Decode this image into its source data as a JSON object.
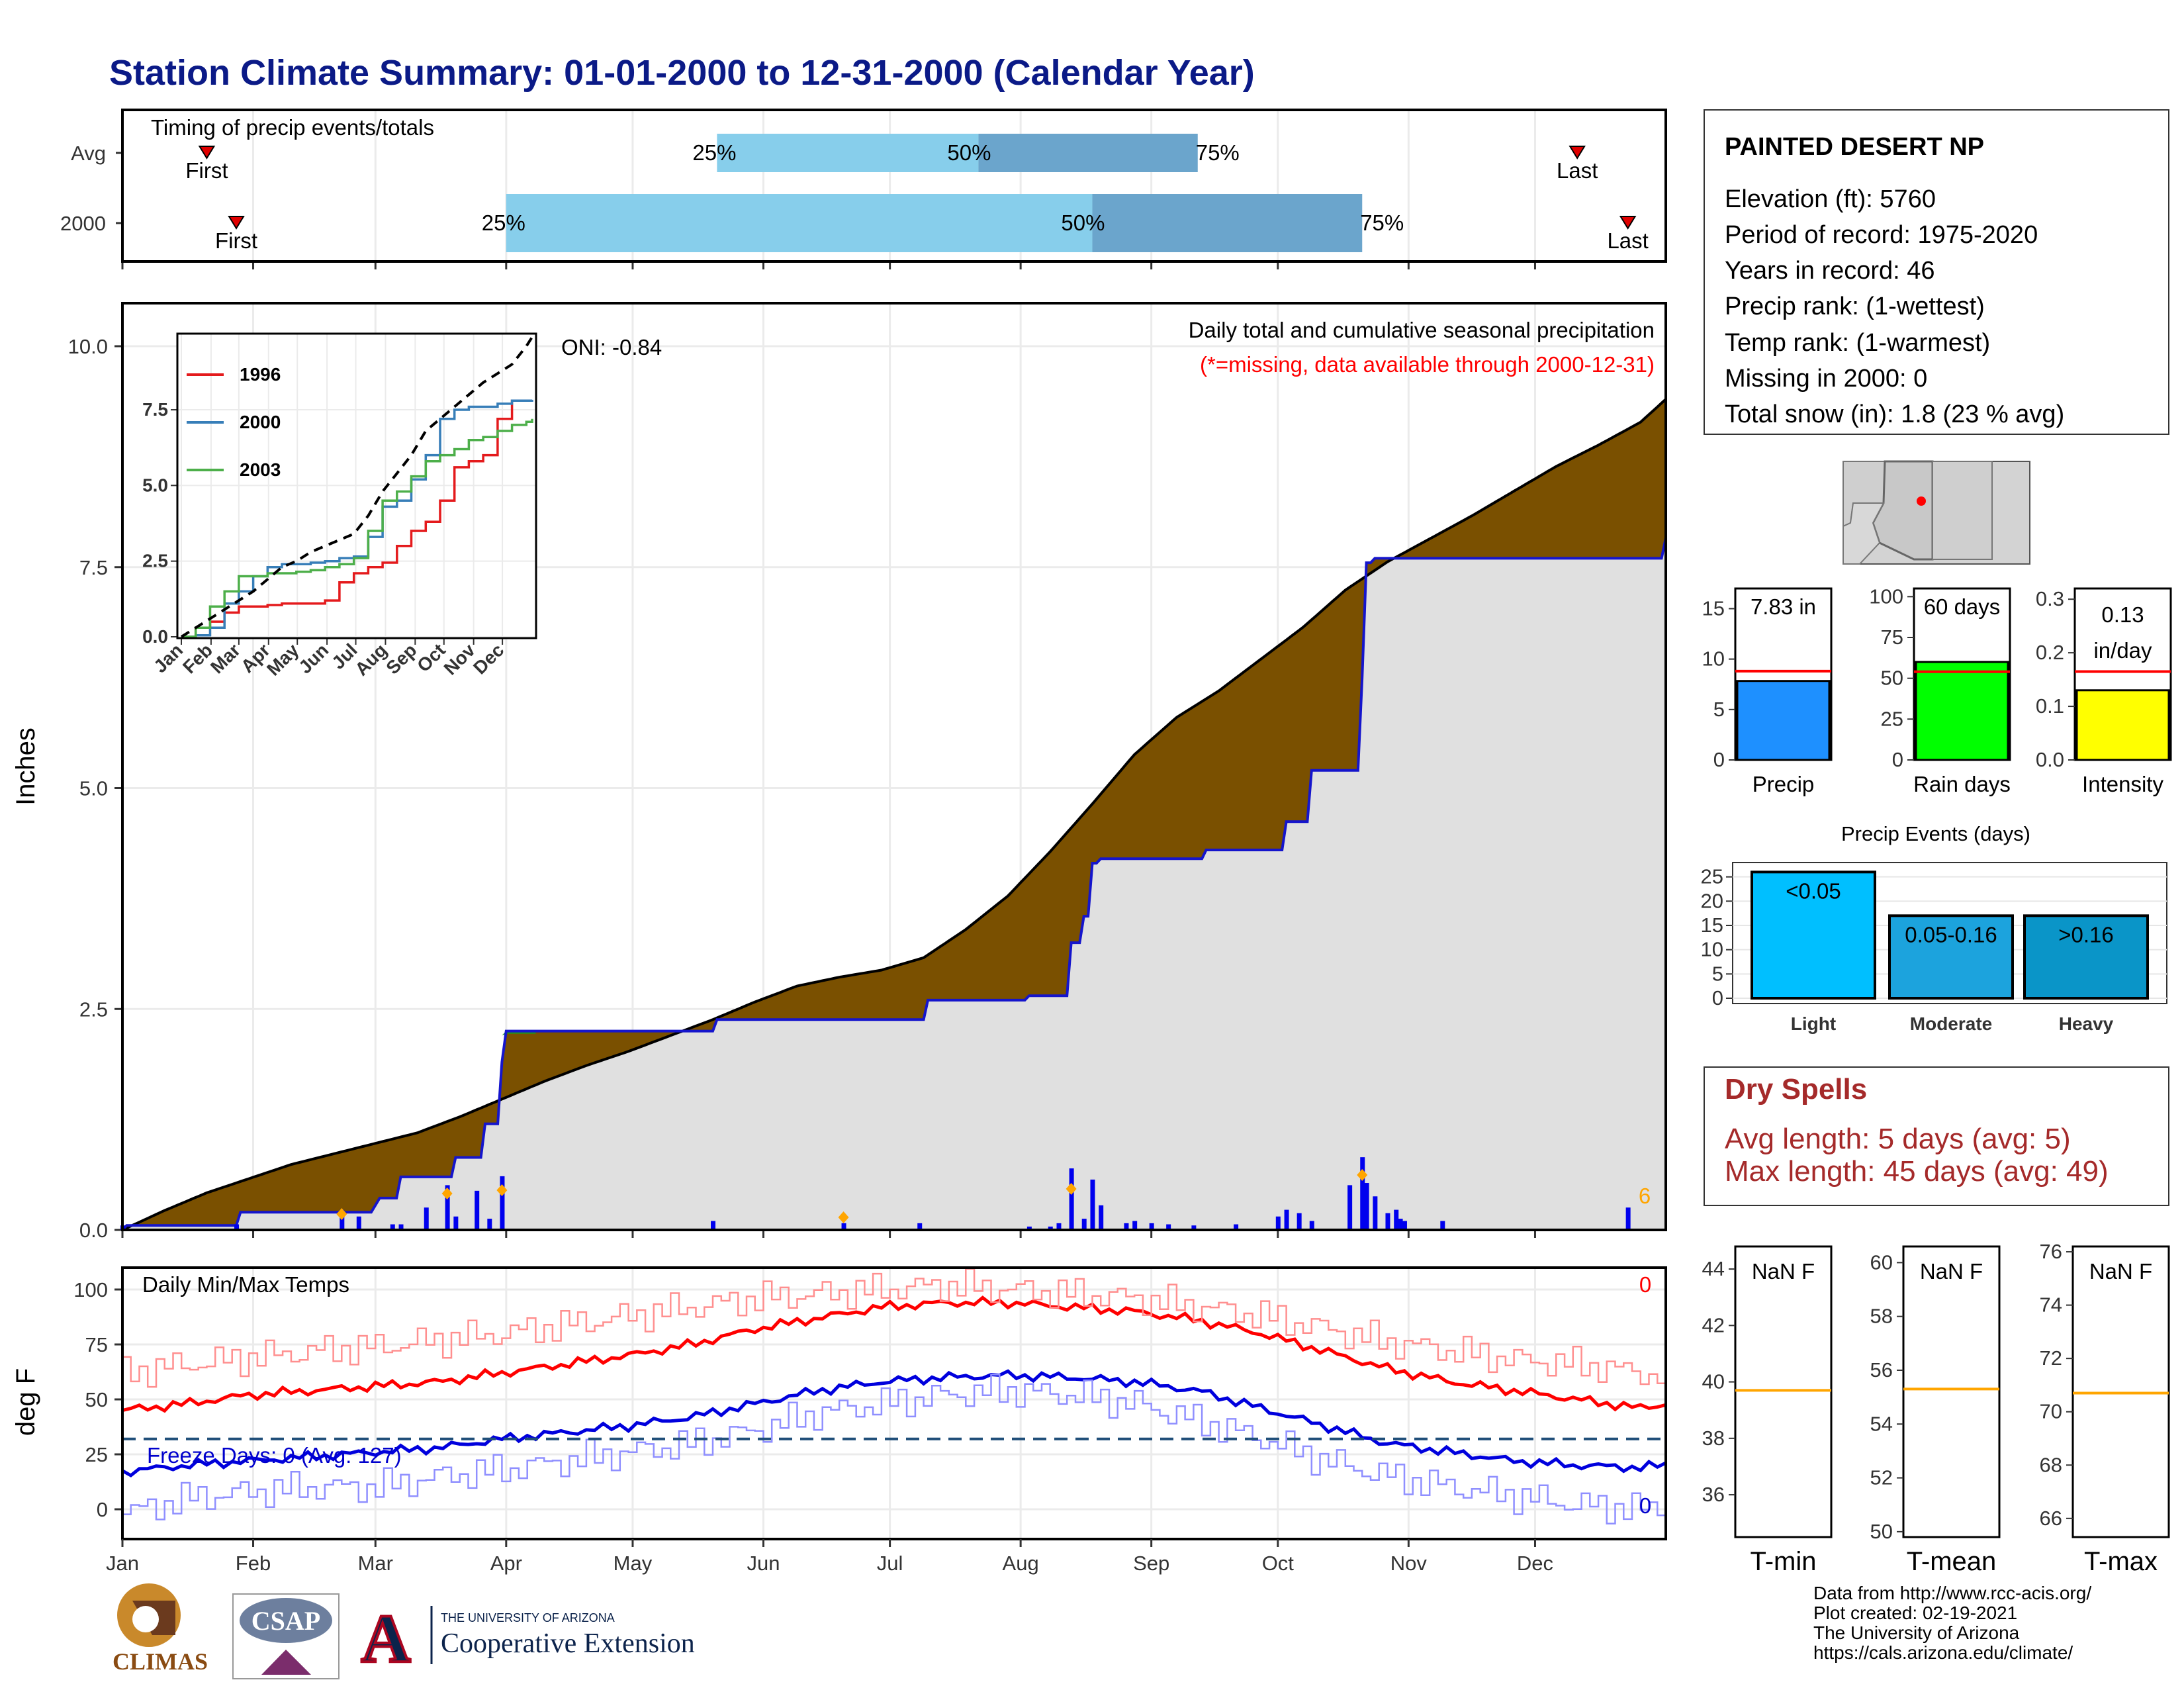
{
  "title": "Station Climate Summary: 01-01-2000 to 12-31-2000 (Calendar Year)",
  "colors": {
    "title": "#0b1a87",
    "cumulative_observed": "#7a5000",
    "cumulative_average": "#e0e0e0",
    "bar_25_50": "#87ceeb",
    "bar_50_75": "#6ba5cc",
    "daily_bars": "#0000ee",
    "event_marker": "#ffa500",
    "tmax": "#ff0000",
    "tmin": "#0000ee",
    "precip_bar": "#1e90ff",
    "rain_days_bar": "#00ff00",
    "intensity_bar": "#ffff00",
    "events_light": "#00bfff",
    "events_moderate": "#1ca3dd",
    "events_heavy": "#0a95c8",
    "avg_line": "#ff0000",
    "temp_avg_line": "#ffa500",
    "dry_spells": "#a52a2a"
  },
  "months": [
    "Jan",
    "Feb",
    "Mar",
    "Apr",
    "May",
    "Jun",
    "Jul",
    "Aug",
    "Sep",
    "Oct",
    "Nov",
    "Dec"
  ],
  "timing": {
    "title": "Timing of precip events/totals",
    "rows": [
      {
        "label": "Avg",
        "first_doy": 20,
        "p25_doy": 141,
        "p50_doy": 203,
        "p75_doy": 255,
        "last_doy": 345,
        "first_label": "First",
        "last_label": "Last",
        "p25_label": "25%",
        "p50_label": "50%",
        "p75_label": "75%"
      },
      {
        "label": "2000",
        "first_doy": 27,
        "p25_doy": 91,
        "p50_doy": 230,
        "p75_doy": 294,
        "last_doy": 357,
        "first_label": "First",
        "last_label": "Last",
        "p25_label": "25%",
        "p50_label": "50%",
        "p75_label": "75%"
      }
    ]
  },
  "precip_panel": {
    "ylabel": "Inches",
    "title": "Daily total and cumulative seasonal precipitation",
    "note": "(*=missing, data available through 2000-12-31)",
    "oni": "ONI: -0.84",
    "count_label": "6",
    "y_ticks": [
      "0.0",
      "2.5",
      "5.0",
      "7.5",
      "10.0"
    ]
  },
  "chart_data": [
    {
      "type": "area",
      "title": "Daily total and cumulative seasonal precipitation",
      "ylabel": "Inches",
      "ylim": [
        0,
        10.5
      ],
      "x_unit": "day of year 2000",
      "series": [
        {
          "name": "average cumulative",
          "x": [
            0,
            10,
            20,
            30,
            40,
            50,
            60,
            70,
            80,
            90,
            100,
            110,
            120,
            130,
            140,
            150,
            160,
            170,
            180,
            190,
            200,
            210,
            220,
            230,
            240,
            250,
            260,
            270,
            280,
            290,
            300,
            310,
            320,
            330,
            340,
            350,
            360,
            366
          ],
          "values": [
            0.0,
            0.22,
            0.42,
            0.58,
            0.74,
            0.86,
            0.98,
            1.1,
            1.28,
            1.48,
            1.68,
            1.86,
            2.02,
            2.2,
            2.38,
            2.58,
            2.76,
            2.86,
            2.94,
            3.08,
            3.4,
            3.78,
            4.28,
            4.82,
            5.38,
            5.8,
            6.1,
            6.46,
            6.82,
            7.24,
            7.56,
            7.82,
            8.08,
            8.36,
            8.64,
            8.88,
            9.14,
            9.4
          ]
        },
        {
          "name": "2000",
          "x": [
            0,
            1,
            27,
            28,
            58,
            60,
            61,
            65,
            66,
            78,
            79,
            85,
            86,
            89,
            90,
            91,
            140,
            141,
            190,
            191,
            214,
            215,
            224,
            225,
            227,
            228,
            230,
            232,
            256,
            257,
            257,
            275,
            276,
            281,
            282,
            291,
            294,
            295,
            296,
            297,
            299,
            300,
            366
          ],
          "values": [
            0.0,
            0.05,
            0.05,
            0.2,
            0.2,
            0.28,
            0.36,
            0.36,
            0.6,
            0.6,
            0.82,
            0.82,
            1.2,
            1.2,
            1.9,
            2.25,
            2.25,
            2.38,
            2.38,
            2.6,
            2.6,
            2.65,
            2.65,
            3.25,
            3.25,
            3.55,
            4.15,
            4.2,
            4.2,
            4.3,
            4.3,
            4.3,
            4.62,
            4.62,
            5.2,
            5.2,
            6.25,
            7.55,
            7.55,
            7.6,
            7.6,
            7.6,
            7.83
          ]
        }
      ]
    },
    {
      "type": "bar",
      "title": "daily precipitation",
      "x_unit": "day of year 2000",
      "ylabel": "Inches",
      "x": [
        0,
        27,
        52,
        56,
        64,
        66,
        72,
        77,
        79,
        84,
        87,
        90,
        140,
        171,
        189,
        215,
        220,
        222,
        225,
        228,
        230,
        232,
        238,
        240,
        244,
        248,
        254,
        264,
        274,
        276,
        279,
        282,
        291,
        294,
        295,
        297,
        300,
        302,
        303,
        304,
        313,
        357
      ],
      "values": [
        0.04,
        0.05,
        0.18,
        0.12,
        0.05,
        0.05,
        0.2,
        0.4,
        0.12,
        0.35,
        0.1,
        0.48,
        0.08,
        0.06,
        0.06,
        0.03,
        0.03,
        0.06,
        0.55,
        0.1,
        0.45,
        0.22,
        0.06,
        0.08,
        0.06,
        0.05,
        0.04,
        0.05,
        0.12,
        0.18,
        0.15,
        0.08,
        0.4,
        0.65,
        0.42,
        0.3,
        0.15,
        0.18,
        0.1,
        0.08,
        0.08,
        0.2
      ]
    },
    {
      "type": "line",
      "title": "inset cumulative",
      "x": [
        0,
        15,
        30,
        45,
        60,
        75,
        90,
        105,
        120,
        135,
        150,
        165,
        180,
        195,
        210,
        225,
        240,
        255,
        270,
        285,
        300,
        315,
        330,
        345,
        360,
        366
      ],
      "series": [
        {
          "name": "1996",
          "values": [
            0.0,
            0.3,
            0.5,
            0.8,
            1.0,
            1.0,
            1.05,
            1.1,
            1.1,
            1.1,
            1.2,
            1.8,
            2.1,
            2.3,
            2.45,
            3.0,
            3.5,
            3.8,
            4.5,
            5.6,
            5.8,
            6.0,
            7.2,
            7.8,
            7.8,
            7.8
          ]
        },
        {
          "name": "2000",
          "values": [
            0.0,
            0.05,
            0.3,
            1.1,
            1.5,
            2.0,
            2.3,
            2.4,
            2.4,
            2.45,
            2.5,
            2.6,
            2.65,
            3.3,
            4.3,
            4.5,
            5.2,
            6.0,
            7.2,
            7.5,
            7.6,
            7.6,
            7.7,
            7.8,
            7.8,
            7.83
          ]
        },
        {
          "name": "2003",
          "values": [
            0.0,
            0.3,
            1.0,
            1.5,
            2.0,
            2.0,
            2.1,
            2.1,
            2.15,
            2.2,
            2.3,
            2.4,
            2.6,
            3.5,
            4.5,
            4.8,
            5.3,
            5.8,
            6.0,
            6.2,
            6.5,
            6.6,
            6.8,
            7.0,
            7.1,
            7.2
          ]
        },
        {
          "name": "average",
          "values": [
            0.0,
            0.3,
            0.6,
            0.9,
            1.2,
            1.5,
            1.9,
            2.3,
            2.5,
            2.8,
            3.0,
            3.2,
            3.4,
            4.0,
            4.8,
            5.4,
            6.0,
            6.8,
            7.2,
            7.6,
            8.0,
            8.4,
            8.7,
            9.0,
            9.6,
            9.9
          ]
        }
      ],
      "ylim": [
        0,
        10
      ],
      "y_ticks": [
        "0.0",
        "2.5",
        "5.0",
        "7.5"
      ]
    },
    {
      "type": "line",
      "title": "Daily Min/Max Temps",
      "ylabel": "deg F",
      "ylim": [
        -8,
        108
      ],
      "x_unit": "day of year 2000",
      "freeze_line": 32,
      "series": [
        {
          "name": "max normal",
          "x": [
            0,
            15,
            30,
            45,
            60,
            75,
            90,
            105,
            120,
            135,
            150,
            165,
            180,
            195,
            210,
            225,
            240,
            255,
            270,
            285,
            300,
            315,
            330,
            345,
            360,
            366
          ],
          "values": [
            45,
            48,
            52,
            54,
            56,
            58,
            62,
            66,
            70,
            75,
            82,
            87,
            92,
            94,
            94,
            92,
            90,
            86,
            80,
            72,
            64,
            58,
            54,
            50,
            46,
            48
          ]
        },
        {
          "name": "max record",
          "x": [
            0,
            15,
            30,
            45,
            60,
            75,
            90,
            105,
            120,
            135,
            150,
            165,
            180,
            195,
            210,
            225,
            240,
            255,
            270,
            285,
            300,
            315,
            330,
            345,
            360,
            366
          ],
          "values": [
            62,
            66,
            69,
            72,
            74,
            77,
            80,
            84,
            88,
            92,
            96,
            98,
            100,
            102,
            100,
            98,
            96,
            92,
            88,
            82,
            76,
            72,
            68,
            66,
            62,
            60
          ]
        },
        {
          "name": "min normal",
          "x": [
            0,
            15,
            30,
            45,
            60,
            75,
            90,
            105,
            120,
            135,
            150,
            165,
            180,
            195,
            210,
            225,
            240,
            255,
            270,
            285,
            300,
            315,
            330,
            345,
            360,
            366
          ],
          "values": [
            17,
            20,
            22,
            24,
            26,
            28,
            32,
            35,
            38,
            42,
            48,
            54,
            58,
            60,
            61,
            60,
            58,
            54,
            46,
            38,
            30,
            26,
            22,
            20,
            19,
            20
          ]
        },
        {
          "name": "min record",
          "x": [
            0,
            15,
            30,
            45,
            60,
            75,
            90,
            105,
            120,
            135,
            150,
            165,
            180,
            195,
            210,
            225,
            240,
            255,
            270,
            285,
            300,
            315,
            330,
            345,
            360,
            366
          ],
          "values": [
            -2,
            5,
            8,
            10,
            10,
            15,
            18,
            22,
            26,
            30,
            36,
            44,
            48,
            52,
            54,
            52,
            48,
            40,
            32,
            22,
            15,
            10,
            6,
            2,
            0,
            2
          ]
        }
      ]
    }
  ],
  "temp_panel": {
    "ylabel": "deg F",
    "title": "Daily Min/Max Temps",
    "freeze": "Freeze Days: 0 (Avg: 127)",
    "count_top": "0",
    "count_bottom": "0",
    "y_ticks": [
      "0",
      "25",
      "50",
      "75",
      "100"
    ]
  },
  "inset": {
    "legend": [
      "1996",
      "2000",
      "2003"
    ],
    "month_ticks": [
      "Jan",
      "Feb",
      "Mar",
      "Apr",
      "May",
      "Jun",
      "Jul",
      "Aug",
      "Sep",
      "Oct",
      "Nov",
      "Dec"
    ]
  },
  "station": {
    "name": "PAINTED DESERT NP",
    "lines": [
      "Elevation (ft): 5760",
      "Period of record: 1975-2020",
      "Years in record: 46",
      "Precip rank:  (1-wettest)",
      "Temp rank:  (1-warmest)",
      "Missing in 2000: 0",
      "Total snow (in): 1.8 (23 % avg)"
    ]
  },
  "summary_bars": [
    {
      "label": "Precip",
      "value_label": "7.83 in",
      "value": 7.83,
      "avg": 8.8,
      "ymax": 17,
      "ticks": [
        0,
        5,
        10,
        15
      ]
    },
    {
      "label": "Rain days",
      "value_label": "60 days",
      "value": 60,
      "avg": 54,
      "ymax": 105,
      "ticks": [
        0,
        25,
        50,
        75,
        100
      ]
    },
    {
      "label": "Intensity",
      "value_label_1": "0.13",
      "value_label_2": "in/day",
      "value": 0.13,
      "avg": 0.165,
      "ymax": 0.32,
      "ticks": [
        "0.0",
        "0.1",
        "0.2",
        "0.3"
      ]
    }
  ],
  "precip_events": {
    "title": "Precip Events (days)",
    "categories": [
      "Light",
      "Moderate",
      "Heavy"
    ],
    "bar_labels": [
      "<0.05",
      "0.05-0.16",
      ">0.16"
    ],
    "values": [
      26,
      17,
      17
    ],
    "ymax": 27,
    "ticks": [
      0,
      5,
      10,
      15,
      20,
      25
    ]
  },
  "dry_spells": {
    "title": "Dry Spells",
    "avg_length": "Avg length: 5 days (avg: 5)",
    "max_length": "Max length: 45 days (avg: 49)"
  },
  "temp_summary": [
    {
      "label": "T-min",
      "value_label": "NaN F",
      "avg": 39.7,
      "ymin": 34.5,
      "ymax": 44.8,
      "ticks": [
        36,
        38,
        40,
        42,
        44
      ]
    },
    {
      "label": "T-mean",
      "value_label": "NaN F",
      "avg": 55.3,
      "ymin": 49.8,
      "ymax": 60.6,
      "ticks": [
        50,
        52,
        54,
        56,
        58,
        60
      ]
    },
    {
      "label": "T-max",
      "value_label": "NaN F",
      "avg": 70.7,
      "ymin": 65.3,
      "ymax": 76.2,
      "ticks": [
        66,
        68,
        70,
        72,
        74,
        76
      ]
    }
  ],
  "footer": {
    "lines": [
      "Data from http://www.rcc-acis.org/",
      "Plot created: 02-19-2021",
      "The University of Arizona",
      "https://cals.arizona.edu/climate/"
    ]
  },
  "logos": {
    "climas": "CLIMAS",
    "csap": "CSAP",
    "university": "THE UNIVERSITY OF ARIZONA",
    "extension": "Cooperative Extension",
    "ua_letter": "A"
  }
}
